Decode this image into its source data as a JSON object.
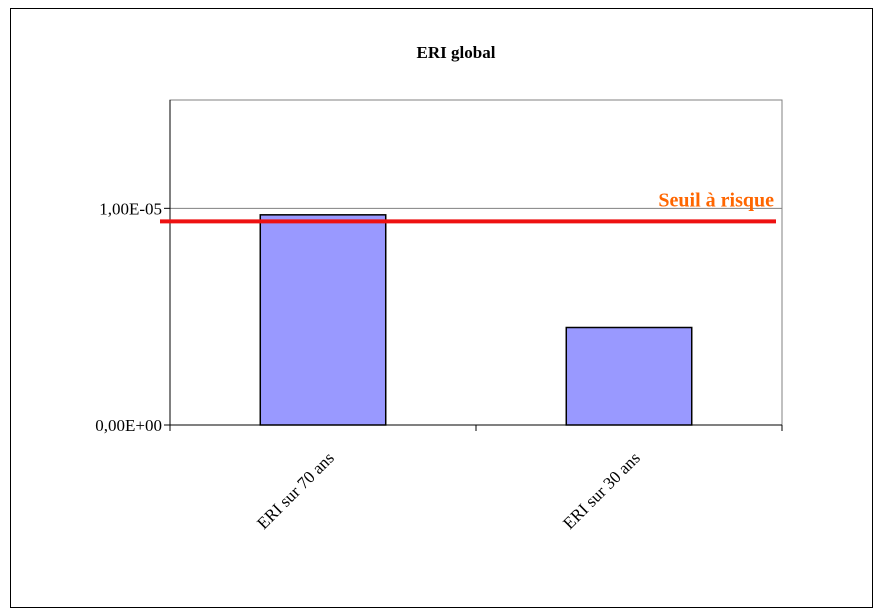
{
  "chart_data": {
    "type": "bar",
    "title": "ERI global",
    "categories": [
      "ERI sur 70 ans",
      "ERI sur 30 ans"
    ],
    "values": [
      9.7e-06,
      4.5e-06
    ],
    "ylim": [
      0,
      1.5e-05
    ],
    "y_tick_values": [
      0,
      1e-05
    ],
    "y_tick_labels": [
      "0,00E+00",
      "1,00E-05"
    ],
    "xlabel": "",
    "ylabel": "",
    "bar_color": "#9999ff",
    "grid": false,
    "threshold": {
      "label": "Seuil à risque",
      "value": 9.4e-06,
      "color": "#ee1111",
      "label_color": "#ff6600"
    }
  }
}
